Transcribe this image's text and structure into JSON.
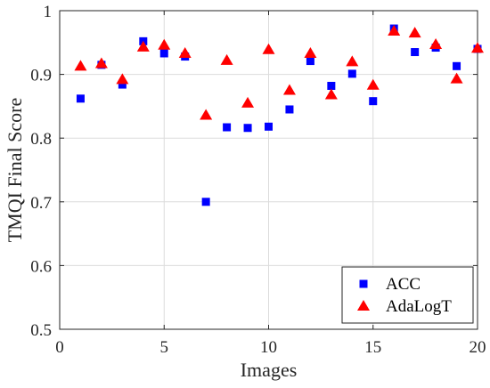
{
  "chart_data": {
    "type": "scatter",
    "xlabel": "Images",
    "ylabel": "TMQI Final Score",
    "xlim": [
      0,
      20
    ],
    "ylim": [
      0.5,
      1
    ],
    "xticks": [
      0,
      5,
      10,
      15,
      20
    ],
    "yticks": [
      0.5,
      0.6,
      0.7,
      0.8,
      0.9,
      1
    ],
    "ytick_labels": [
      "0.5",
      "0.6",
      "0.7",
      "0.8",
      "0.9",
      "1"
    ],
    "grid": true,
    "legend_position": "bottom-right",
    "x": [
      1,
      2,
      3,
      4,
      5,
      6,
      7,
      8,
      9,
      10,
      11,
      12,
      13,
      14,
      15,
      16,
      17,
      18,
      19,
      20
    ],
    "series": [
      {
        "name": "ACC",
        "marker": "square",
        "color": "#0000ff",
        "values": [
          0.862,
          0.915,
          0.884,
          0.952,
          0.933,
          0.928,
          0.7,
          0.817,
          0.816,
          0.818,
          0.845,
          0.921,
          0.882,
          0.901,
          0.858,
          0.972,
          0.935,
          0.942,
          0.913,
          0.94
        ]
      },
      {
        "name": "AdaLogT",
        "marker": "triangle",
        "color": "#ff0000",
        "values": [
          0.913,
          0.917,
          0.892,
          0.943,
          0.946,
          0.933,
          0.836,
          0.922,
          0.855,
          0.939,
          0.875,
          0.933,
          0.868,
          0.92,
          0.883,
          0.968,
          0.965,
          0.947,
          0.893,
          0.941
        ]
      }
    ]
  }
}
